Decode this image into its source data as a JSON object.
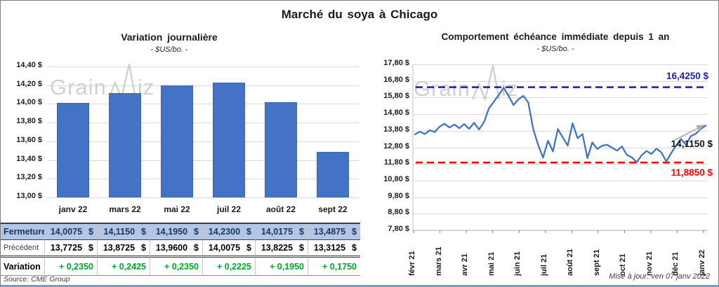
{
  "page": {
    "title": "Marché du soya à Chicago",
    "source": "Source: CME Group",
    "updated": "Mise à jour: ven 07 janv 2022",
    "watermark": {
      "prefix": "Grain",
      "suffix": "iz"
    }
  },
  "colors": {
    "bar": "#4472C4",
    "line": "#4472C4",
    "high_dash": "#2320AE",
    "low_dash": "#FE0000",
    "close_row_bg": "#B4C6E7",
    "close_row_text": "#17375E",
    "variation_green": "#00A52B",
    "gridline": "#D9D9D9"
  },
  "chart_data": [
    {
      "type": "bar",
      "title": "Variation journalière",
      "subtitle": "- $US/bo. -",
      "categories": [
        "janv 22",
        "mars 22",
        "mai 22",
        "juil 22",
        "août 22",
        "sept 22"
      ],
      "values": [
        14.0075,
        14.115,
        14.195,
        14.23,
        14.0175,
        13.4875
      ],
      "yticks": [
        "14,40 $",
        "14,20 $",
        "14,00 $",
        "13,80 $",
        "13,60 $",
        "13,40 $",
        "13,20 $",
        "13,00 $"
      ],
      "ylim": [
        13.0,
        14.4
      ],
      "xlabel": "",
      "ylabel": "",
      "grid": true,
      "legend": "none"
    },
    {
      "type": "line",
      "title": "Comportement échéance immédiate depuis 1 an",
      "subtitle": "- $US/bo. -",
      "x_labels": [
        "févr 21",
        "mars 21",
        "avr 21",
        "mai 21",
        "juin 21",
        "juil 21",
        "août 21",
        "sept 21",
        "oct 21",
        "nov 21",
        "déc 21",
        "janv 22"
      ],
      "values": [
        13.58,
        13.75,
        13.6,
        13.83,
        13.72,
        14.05,
        14.22,
        14.0,
        14.18,
        13.95,
        14.2,
        13.92,
        14.28,
        13.88,
        14.3,
        15.15,
        15.55,
        15.95,
        16.4,
        15.9,
        15.35,
        15.7,
        15.9,
        15.5,
        13.9,
        12.95,
        12.18,
        13.2,
        12.55,
        13.9,
        13.4,
        12.9,
        14.25,
        13.35,
        13.6,
        12.15,
        13.1,
        12.7,
        12.9,
        12.95,
        12.78,
        12.6,
        12.85,
        12.35,
        12.2,
        11.9,
        12.32,
        12.58,
        12.4,
        12.72,
        12.5,
        11.95,
        12.45,
        12.9,
        13.3,
        12.95,
        13.48,
        13.62,
        13.9,
        14.115
      ],
      "yticks": [
        "17,80 $",
        "16,80 $",
        "15,80 $",
        "14,80 $",
        "13,80 $",
        "12,80 $",
        "11,80 $",
        "10,80 $",
        "9,80 $",
        "8,80 $",
        "7,80 $"
      ],
      "ylim": [
        7.8,
        17.8
      ],
      "high_line": {
        "value": 16.425,
        "label": "16,4250 $"
      },
      "low_line": {
        "value": 11.885,
        "label": "11,8850 $"
      },
      "last_label": "14,1150 $",
      "grid": true,
      "legend": "none"
    }
  ],
  "table": {
    "rows": [
      {
        "label": "Fermeture",
        "currency": "$",
        "values": [
          "14,0075",
          "14,1150",
          "14,1950",
          "14,2300",
          "14,0175",
          "13,4875"
        ]
      },
      {
        "label": "Précédent",
        "currency": "$",
        "values": [
          "13,7725",
          "13,8725",
          "13,9600",
          "14,0075",
          "13,8225",
          "13,3125"
        ]
      },
      {
        "label": "Variation",
        "currency": "",
        "values": [
          "+ 0,2350",
          "+ 0,2425",
          "+ 0,2350",
          "+ 0,2225",
          "+ 0,1950",
          "+ 0,1750"
        ]
      }
    ]
  }
}
